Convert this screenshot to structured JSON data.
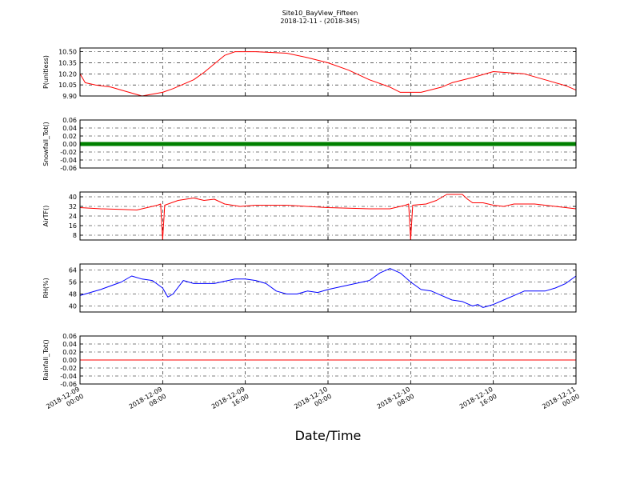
{
  "figure": {
    "title": "Site10_BayView_Fifteen",
    "subtitle": "2018-12-11 - (2018-345)",
    "xlabel": "Date/Time",
    "x_ticks": [
      {
        "x": 0,
        "l1": "2018-12-09",
        "l2": "00:00"
      },
      {
        "x": 8,
        "l1": "2018-12-09",
        "l2": "08:00"
      },
      {
        "x": 16,
        "l1": "2018-12-09",
        "l2": "16:00"
      },
      {
        "x": 24,
        "l1": "2018-12-10",
        "l2": "00:00"
      },
      {
        "x": 32,
        "l1": "2018-12-10",
        "l2": "08:00"
      },
      {
        "x": 40,
        "l1": "2018-12-10",
        "l2": "16:00"
      },
      {
        "x": 48,
        "l1": "2018-12-11",
        "l2": "00:00"
      }
    ]
  },
  "chart_data": [
    {
      "type": "line",
      "ylabel": "P(unitless)",
      "ylim": [
        9.9,
        10.55
      ],
      "yticks": [
        "10.50",
        "10.35",
        "10.20",
        "10.05",
        "9.90"
      ],
      "ytick_values": [
        10.5,
        10.35,
        10.2,
        10.05,
        9.9
      ],
      "grid": true,
      "color": "#ff0000",
      "x_unit": "hours since 2018-12-09 00:00",
      "series": [
        {
          "x": [
            0,
            0.5,
            1.5,
            3,
            4,
            6,
            8,
            9,
            11,
            12,
            14,
            15,
            17,
            20,
            22,
            24,
            26,
            28,
            30,
            31,
            33,
            35,
            36,
            38,
            40,
            43,
            45,
            47,
            48
          ],
          "y": [
            10.2,
            10.08,
            10.05,
            10.02,
            9.98,
            9.9,
            9.95,
            10.0,
            10.12,
            10.22,
            10.45,
            10.5,
            10.5,
            10.48,
            10.42,
            10.35,
            10.25,
            10.12,
            10.02,
            9.95,
            9.95,
            10.02,
            10.08,
            10.15,
            10.23,
            10.2,
            10.12,
            10.04,
            9.98
          ]
        }
      ]
    },
    {
      "type": "line",
      "ylabel": "Snowfall_Tot()",
      "ylim": [
        -0.06,
        0.06
      ],
      "yticks": [
        "0.06",
        "0.04",
        "0.02",
        "0.00",
        "-0.02",
        "-0.04",
        "-0.06"
      ],
      "ytick_values": [
        0.06,
        0.04,
        0.02,
        0.0,
        -0.02,
        -0.04,
        -0.06
      ],
      "grid": true,
      "color": "#008000",
      "marker": "dense",
      "x_unit": "hours since 2018-12-09 00:00",
      "series": [
        {
          "x": [
            0,
            48
          ],
          "y": [
            0.0,
            0.0
          ]
        }
      ]
    },
    {
      "type": "line",
      "ylabel": "AirTF()",
      "ylim": [
        4,
        44
      ],
      "yticks": [
        "40",
        "32",
        "24",
        "16",
        "8"
      ],
      "ytick_values": [
        40,
        32,
        24,
        16,
        8
      ],
      "grid": true,
      "color": "#ff0000",
      "x_unit": "hours since 2018-12-09 00:00",
      "series": [
        {
          "x": [
            0,
            2,
            4,
            5.5,
            7.5,
            7.8,
            8.0,
            8.2,
            9.5,
            11,
            12,
            13,
            14,
            15.5,
            17,
            20,
            24,
            28,
            30,
            31.5,
            31.8,
            32.0,
            32.2,
            33.5,
            34.5,
            35.5,
            36,
            37,
            37.5,
            38,
            39,
            40,
            41,
            42,
            44,
            46,
            48
          ],
          "y": [
            31,
            30,
            29.5,
            29,
            33,
            34,
            4,
            33,
            37,
            39,
            37,
            38,
            34,
            32,
            33,
            33,
            31,
            30,
            30,
            33,
            34,
            4,
            33,
            34,
            37,
            42,
            42,
            42,
            38,
            35,
            35,
            33,
            32,
            34,
            34,
            32,
            30
          ]
        }
      ]
    },
    {
      "type": "line",
      "ylabel": "RH(%)",
      "ylim": [
        36,
        68
      ],
      "yticks": [
        "64",
        "56",
        "48",
        "40"
      ],
      "ytick_values": [
        64,
        56,
        48,
        40
      ],
      "grid": true,
      "color": "#0000ff",
      "x_unit": "hours since 2018-12-09 00:00",
      "series": [
        {
          "x": [
            0,
            2,
            4,
            5,
            6,
            7,
            8,
            8.5,
            9,
            10,
            11,
            12,
            13,
            15,
            16,
            17,
            18,
            19,
            20,
            21,
            22,
            23,
            24,
            26,
            28,
            29,
            30,
            31,
            32,
            33,
            34,
            35,
            36,
            37,
            38,
            38.5,
            39,
            40,
            41,
            42,
            43,
            44,
            45,
            46,
            47,
            48
          ],
          "y": [
            47,
            51,
            56,
            60,
            58,
            57,
            52,
            46,
            48,
            57,
            55,
            55,
            55,
            58,
            58,
            57,
            55,
            50,
            48,
            48,
            50,
            49,
            51,
            54,
            57,
            62,
            65,
            62,
            56,
            51,
            50,
            47,
            44,
            43,
            40,
            41,
            39,
            41,
            44,
            47,
            50,
            50,
            50,
            52,
            55,
            60
          ]
        }
      ]
    },
    {
      "type": "line",
      "ylabel": "Rainfall_Tot()",
      "ylim": [
        -0.06,
        0.06
      ],
      "yticks": [
        "0.06",
        "0.04",
        "0.02",
        "0.00",
        "-0.02",
        "-0.04",
        "-0.06"
      ],
      "ytick_values": [
        0.06,
        0.04,
        0.02,
        0.0,
        -0.02,
        -0.04,
        -0.06
      ],
      "grid": true,
      "color": "#ff0000",
      "x_unit": "hours since 2018-12-09 00:00",
      "series": [
        {
          "x": [
            0,
            48
          ],
          "y": [
            0.0,
            0.0
          ]
        }
      ]
    }
  ]
}
